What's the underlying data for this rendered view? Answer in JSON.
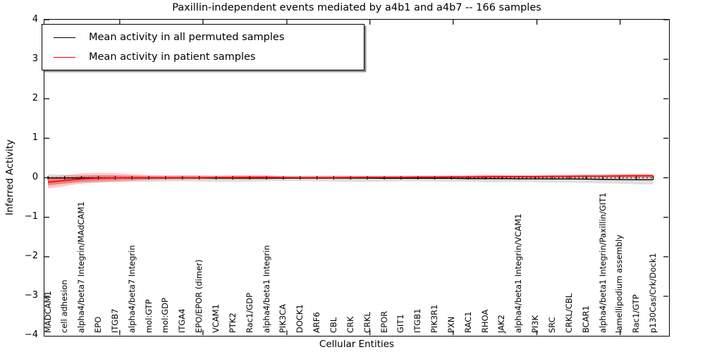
{
  "title": "Paxillin-independent events mediated by a4b1 and a4b7 -- 166 samples",
  "axes": {
    "xlabel": "Cellular Entities",
    "ylabel": "Inferred Activity",
    "y_tick_values": [
      4,
      3,
      2,
      1,
      0,
      -1,
      -2,
      -3,
      -4
    ]
  },
  "legend": {
    "items": [
      {
        "label": "Mean activity in all permuted samples",
        "color": "#000000"
      },
      {
        "label": "Mean activity in patient samples",
        "color": "#ff0000"
      }
    ]
  },
  "chart_data": {
    "type": "line",
    "title": "Paxillin-independent events mediated by a4b1 and a4b7 -- 166 samples",
    "xlabel": "Cellular Entities",
    "ylabel": "Inferred Activity",
    "ylim": [
      -4,
      4
    ],
    "grid": false,
    "legend_position": "upper left",
    "zero_reference_line": true,
    "x_major_ticks": [
      4.27,
      9.22,
      14.21,
      19.15,
      24.1,
      29.08,
      34.03
    ],
    "categories": [
      "MADCAM1",
      "cell adhesion",
      "alpha4/beta7 Integrin/MAdCAM1",
      "EPO",
      "ITGB7",
      "alpha4/beta7 Integrin",
      "mol:GTP",
      "mol:GDP",
      "ITGA4",
      "EPO/EPOR (dimer)",
      "VCAM1",
      "PTK2",
      "Rac1/GDP",
      "alpha4/beta1 Integrin",
      "PIK3CA",
      "DOCK1",
      "ARF6",
      "CBL",
      "CRK",
      "CRKL",
      "EPOR",
      "GIT1",
      "ITGB1",
      "PIK3R1",
      "PXN",
      "RAC1",
      "RHOA",
      "JAK2",
      "alpha4/beta1 Integrin/VCAM1",
      "PI3K",
      "SRC",
      "CRKL/CBL",
      "BCAR1",
      "alpha4/beta1 Integrin/Paxillin/GIT1",
      "lamellipodium assembly",
      "Rac1/GTP",
      "p130Cas/Crk/Dock1"
    ],
    "series": [
      {
        "name": "Mean activity in all permuted samples",
        "color": "#000000",
        "band_color": "#000000",
        "values": [
          -0.005,
          -0.005,
          -0.005,
          -0.005,
          -0.005,
          -0.005,
          -0.005,
          -0.005,
          -0.005,
          -0.005,
          -0.01,
          -0.01,
          -0.01,
          -0.01,
          -0.01,
          -0.01,
          -0.01,
          -0.01,
          -0.01,
          -0.01,
          -0.015,
          -0.015,
          -0.015,
          -0.015,
          -0.015,
          -0.02,
          -0.02,
          -0.02,
          -0.025,
          -0.025,
          -0.03,
          -0.03,
          -0.035,
          -0.04,
          -0.045,
          -0.05,
          -0.05
        ],
        "band_hi": [
          0.09,
          0.075,
          0.065,
          0.06,
          0.06,
          0.055,
          0.05,
          0.05,
          0.05,
          0.055,
          0.06,
          0.055,
          0.05,
          0.05,
          0.045,
          0.045,
          0.05,
          0.05,
          0.045,
          0.045,
          0.05,
          0.05,
          0.045,
          0.045,
          0.04,
          0.04,
          0.045,
          0.045,
          0.04,
          0.04,
          0.04,
          0.04,
          0.04,
          0.04,
          0.04,
          0.035,
          0.035
        ],
        "band_lo": [
          -0.17,
          -0.14,
          -0.12,
          -0.11,
          -0.1,
          -0.1,
          -0.1,
          -0.095,
          -0.09,
          -0.095,
          -0.1,
          -0.1,
          -0.095,
          -0.09,
          -0.085,
          -0.085,
          -0.09,
          -0.095,
          -0.1,
          -0.105,
          -0.1,
          -0.09,
          -0.09,
          -0.095,
          -0.1,
          -0.1,
          -0.115,
          -0.11,
          -0.105,
          -0.11,
          -0.12,
          -0.12,
          -0.13,
          -0.14,
          -0.15,
          -0.165,
          -0.17
        ]
      },
      {
        "name": "Mean activity in patient samples",
        "color": "#ff0000",
        "band_color": "#ff0000",
        "values": [
          -0.11,
          -0.07,
          -0.03,
          -0.01,
          -0.005,
          0,
          0,
          0,
          0,
          0,
          0.005,
          0.005,
          0.01,
          0.01,
          0.005,
          0,
          0,
          0,
          0.005,
          0.01,
          0.01,
          0.01,
          0.015,
          0.015,
          0.02,
          0.02,
          0.025,
          0.03,
          0.03,
          0.03,
          0.035,
          0.035,
          0.04,
          0.04,
          0.045,
          0.05,
          0.05
        ],
        "band_hi": [
          0.03,
          0.06,
          0.11,
          0.125,
          0.115,
          0.09,
          0.07,
          0.06,
          0.065,
          0.06,
          0.045,
          0.06,
          0.07,
          0.065,
          0.04,
          0.045,
          0.05,
          0.05,
          0.05,
          0.05,
          0.045,
          0.05,
          0.055,
          0.055,
          0.06,
          0.07,
          0.08,
          0.075,
          0.07,
          0.07,
          0.075,
          0.08,
          0.085,
          0.09,
          0.095,
          0.1,
          0.1
        ],
        "band_lo": [
          -0.27,
          -0.21,
          -0.15,
          -0.125,
          -0.105,
          -0.08,
          -0.06,
          -0.05,
          -0.045,
          -0.04,
          -0.035,
          -0.04,
          -0.045,
          -0.04,
          -0.03,
          -0.025,
          -0.025,
          -0.025,
          -0.02,
          -0.02,
          -0.02,
          -0.02,
          -0.015,
          -0.015,
          -0.015,
          -0.01,
          -0.01,
          -0.01,
          -0.01,
          -0.01,
          -0.005,
          -0.005,
          -0.005,
          0,
          0,
          0,
          -0.005
        ]
      }
    ]
  }
}
